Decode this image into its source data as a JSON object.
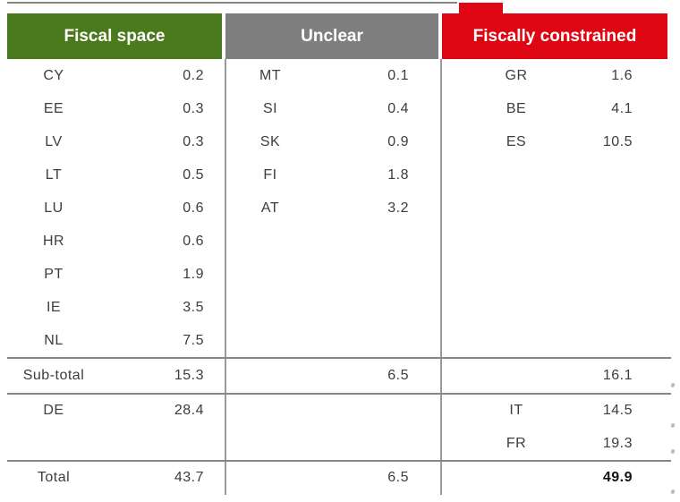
{
  "palette": {
    "green": "#4b7a1d",
    "gray": "#7f7f7f",
    "red": "#df0613",
    "body_text": "#3d3d3d",
    "rule": "#878787",
    "total_bold": "#141414"
  },
  "table": {
    "columns": [
      {
        "header": "Fiscal space",
        "rows": [
          {
            "code": "CY",
            "value": "0.2"
          },
          {
            "code": "EE",
            "value": "0.3"
          },
          {
            "code": "LV",
            "value": "0.3"
          },
          {
            "code": "LT",
            "value": "0.5"
          },
          {
            "code": "LU",
            "value": "0.6"
          },
          {
            "code": "HR",
            "value": "0.6"
          },
          {
            "code": "PT",
            "value": "1.9"
          },
          {
            "code": "IE",
            "value": "3.5"
          },
          {
            "code": "NL",
            "value": "7.5"
          }
        ]
      },
      {
        "header": "Unclear",
        "rows": [
          {
            "code": "MT",
            "value": "0.1"
          },
          {
            "code": "SI",
            "value": "0.4"
          },
          {
            "code": "SK",
            "value": "0.9"
          },
          {
            "code": "FI",
            "value": "1.8"
          },
          {
            "code": "AT",
            "value": "3.2"
          }
        ]
      },
      {
        "header": "Fiscally constrained",
        "rows": [
          {
            "code": "GR",
            "value": "1.6"
          },
          {
            "code": "BE",
            "value": "4.1"
          },
          {
            "code": "ES",
            "value": "10.5"
          }
        ]
      }
    ],
    "subtotal_label": "Sub-total",
    "subtotal_values": [
      "15.3",
      "6.5",
      "16.1"
    ],
    "mid_section": {
      "col1_rows": [
        {
          "code": "DE",
          "value": "28.4"
        }
      ],
      "col3_rows": [
        {
          "code": "IT",
          "value": "14.5"
        },
        {
          "code": "FR",
          "value": "19.3"
        }
      ]
    },
    "total_label": "Total",
    "total_values": [
      "43.7",
      "6.5",
      "49.9"
    ]
  },
  "chart_data": {
    "type": "table",
    "title": "",
    "groups": [
      {
        "label": "Fiscal space",
        "color": "#4b7a1d",
        "entries": [
          [
            "CY",
            0.2
          ],
          [
            "EE",
            0.3
          ],
          [
            "LV",
            0.3
          ],
          [
            "LT",
            0.5
          ],
          [
            "LU",
            0.6
          ],
          [
            "HR",
            0.6
          ],
          [
            "PT",
            1.9
          ],
          [
            "IE",
            3.5
          ],
          [
            "NL",
            7.5
          ]
        ],
        "subtotal": 15.3,
        "additional_entries": [
          [
            "DE",
            28.4
          ]
        ],
        "total": 43.7
      },
      {
        "label": "Unclear",
        "color": "#7f7f7f",
        "entries": [
          [
            "MT",
            0.1
          ],
          [
            "SI",
            0.4
          ],
          [
            "SK",
            0.9
          ],
          [
            "FI",
            1.8
          ],
          [
            "AT",
            3.2
          ]
        ],
        "subtotal": 6.5,
        "additional_entries": [],
        "total": 6.5
      },
      {
        "label": "Fiscally constrained",
        "color": "#df0613",
        "entries": [
          [
            "GR",
            1.6
          ],
          [
            "BE",
            4.1
          ],
          [
            "ES",
            10.5
          ]
        ],
        "subtotal": 16.1,
        "additional_entries": [
          [
            "IT",
            14.5
          ],
          [
            "FR",
            19.3
          ]
        ],
        "total": 49.9
      }
    ]
  }
}
